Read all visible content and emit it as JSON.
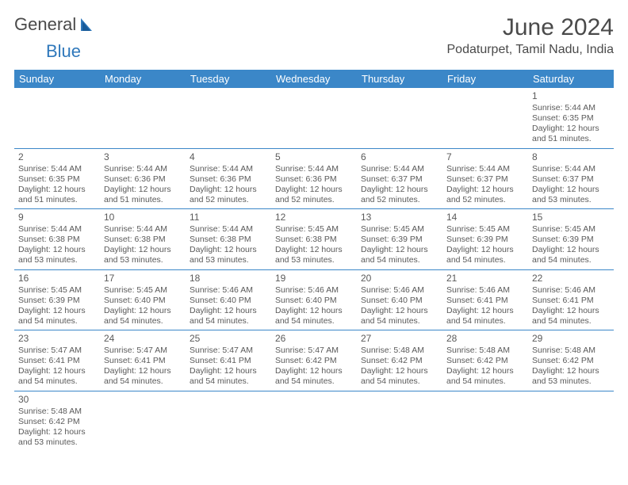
{
  "logo": {
    "text_general": "General",
    "text_blue": "Blue"
  },
  "title": "June 2024",
  "location": "Podaturpet, Tamil Nadu, India",
  "colors": {
    "header_bg": "#3b87c8",
    "header_text": "#ffffff",
    "body_text": "#5a5a5a",
    "rule": "#3b87c8",
    "accent": "#2f78bb",
    "background": "#ffffff"
  },
  "day_headers": [
    "Sunday",
    "Monday",
    "Tuesday",
    "Wednesday",
    "Thursday",
    "Friday",
    "Saturday"
  ],
  "weeks": [
    [
      null,
      null,
      null,
      null,
      null,
      null,
      {
        "n": "1",
        "sunrise": "Sunrise: 5:44 AM",
        "sunset": "Sunset: 6:35 PM",
        "dl1": "Daylight: 12 hours",
        "dl2": "and 51 minutes."
      }
    ],
    [
      {
        "n": "2",
        "sunrise": "Sunrise: 5:44 AM",
        "sunset": "Sunset: 6:35 PM",
        "dl1": "Daylight: 12 hours",
        "dl2": "and 51 minutes."
      },
      {
        "n": "3",
        "sunrise": "Sunrise: 5:44 AM",
        "sunset": "Sunset: 6:36 PM",
        "dl1": "Daylight: 12 hours",
        "dl2": "and 51 minutes."
      },
      {
        "n": "4",
        "sunrise": "Sunrise: 5:44 AM",
        "sunset": "Sunset: 6:36 PM",
        "dl1": "Daylight: 12 hours",
        "dl2": "and 52 minutes."
      },
      {
        "n": "5",
        "sunrise": "Sunrise: 5:44 AM",
        "sunset": "Sunset: 6:36 PM",
        "dl1": "Daylight: 12 hours",
        "dl2": "and 52 minutes."
      },
      {
        "n": "6",
        "sunrise": "Sunrise: 5:44 AM",
        "sunset": "Sunset: 6:37 PM",
        "dl1": "Daylight: 12 hours",
        "dl2": "and 52 minutes."
      },
      {
        "n": "7",
        "sunrise": "Sunrise: 5:44 AM",
        "sunset": "Sunset: 6:37 PM",
        "dl1": "Daylight: 12 hours",
        "dl2": "and 52 minutes."
      },
      {
        "n": "8",
        "sunrise": "Sunrise: 5:44 AM",
        "sunset": "Sunset: 6:37 PM",
        "dl1": "Daylight: 12 hours",
        "dl2": "and 53 minutes."
      }
    ],
    [
      {
        "n": "9",
        "sunrise": "Sunrise: 5:44 AM",
        "sunset": "Sunset: 6:38 PM",
        "dl1": "Daylight: 12 hours",
        "dl2": "and 53 minutes."
      },
      {
        "n": "10",
        "sunrise": "Sunrise: 5:44 AM",
        "sunset": "Sunset: 6:38 PM",
        "dl1": "Daylight: 12 hours",
        "dl2": "and 53 minutes."
      },
      {
        "n": "11",
        "sunrise": "Sunrise: 5:44 AM",
        "sunset": "Sunset: 6:38 PM",
        "dl1": "Daylight: 12 hours",
        "dl2": "and 53 minutes."
      },
      {
        "n": "12",
        "sunrise": "Sunrise: 5:45 AM",
        "sunset": "Sunset: 6:38 PM",
        "dl1": "Daylight: 12 hours",
        "dl2": "and 53 minutes."
      },
      {
        "n": "13",
        "sunrise": "Sunrise: 5:45 AM",
        "sunset": "Sunset: 6:39 PM",
        "dl1": "Daylight: 12 hours",
        "dl2": "and 54 minutes."
      },
      {
        "n": "14",
        "sunrise": "Sunrise: 5:45 AM",
        "sunset": "Sunset: 6:39 PM",
        "dl1": "Daylight: 12 hours",
        "dl2": "and 54 minutes."
      },
      {
        "n": "15",
        "sunrise": "Sunrise: 5:45 AM",
        "sunset": "Sunset: 6:39 PM",
        "dl1": "Daylight: 12 hours",
        "dl2": "and 54 minutes."
      }
    ],
    [
      {
        "n": "16",
        "sunrise": "Sunrise: 5:45 AM",
        "sunset": "Sunset: 6:39 PM",
        "dl1": "Daylight: 12 hours",
        "dl2": "and 54 minutes."
      },
      {
        "n": "17",
        "sunrise": "Sunrise: 5:45 AM",
        "sunset": "Sunset: 6:40 PM",
        "dl1": "Daylight: 12 hours",
        "dl2": "and 54 minutes."
      },
      {
        "n": "18",
        "sunrise": "Sunrise: 5:46 AM",
        "sunset": "Sunset: 6:40 PM",
        "dl1": "Daylight: 12 hours",
        "dl2": "and 54 minutes."
      },
      {
        "n": "19",
        "sunrise": "Sunrise: 5:46 AM",
        "sunset": "Sunset: 6:40 PM",
        "dl1": "Daylight: 12 hours",
        "dl2": "and 54 minutes."
      },
      {
        "n": "20",
        "sunrise": "Sunrise: 5:46 AM",
        "sunset": "Sunset: 6:40 PM",
        "dl1": "Daylight: 12 hours",
        "dl2": "and 54 minutes."
      },
      {
        "n": "21",
        "sunrise": "Sunrise: 5:46 AM",
        "sunset": "Sunset: 6:41 PM",
        "dl1": "Daylight: 12 hours",
        "dl2": "and 54 minutes."
      },
      {
        "n": "22",
        "sunrise": "Sunrise: 5:46 AM",
        "sunset": "Sunset: 6:41 PM",
        "dl1": "Daylight: 12 hours",
        "dl2": "and 54 minutes."
      }
    ],
    [
      {
        "n": "23",
        "sunrise": "Sunrise: 5:47 AM",
        "sunset": "Sunset: 6:41 PM",
        "dl1": "Daylight: 12 hours",
        "dl2": "and 54 minutes."
      },
      {
        "n": "24",
        "sunrise": "Sunrise: 5:47 AM",
        "sunset": "Sunset: 6:41 PM",
        "dl1": "Daylight: 12 hours",
        "dl2": "and 54 minutes."
      },
      {
        "n": "25",
        "sunrise": "Sunrise: 5:47 AM",
        "sunset": "Sunset: 6:41 PM",
        "dl1": "Daylight: 12 hours",
        "dl2": "and 54 minutes."
      },
      {
        "n": "26",
        "sunrise": "Sunrise: 5:47 AM",
        "sunset": "Sunset: 6:42 PM",
        "dl1": "Daylight: 12 hours",
        "dl2": "and 54 minutes."
      },
      {
        "n": "27",
        "sunrise": "Sunrise: 5:48 AM",
        "sunset": "Sunset: 6:42 PM",
        "dl1": "Daylight: 12 hours",
        "dl2": "and 54 minutes."
      },
      {
        "n": "28",
        "sunrise": "Sunrise: 5:48 AM",
        "sunset": "Sunset: 6:42 PM",
        "dl1": "Daylight: 12 hours",
        "dl2": "and 54 minutes."
      },
      {
        "n": "29",
        "sunrise": "Sunrise: 5:48 AM",
        "sunset": "Sunset: 6:42 PM",
        "dl1": "Daylight: 12 hours",
        "dl2": "and 53 minutes."
      }
    ],
    [
      {
        "n": "30",
        "sunrise": "Sunrise: 5:48 AM",
        "sunset": "Sunset: 6:42 PM",
        "dl1": "Daylight: 12 hours",
        "dl2": "and 53 minutes."
      },
      null,
      null,
      null,
      null,
      null,
      null
    ]
  ]
}
